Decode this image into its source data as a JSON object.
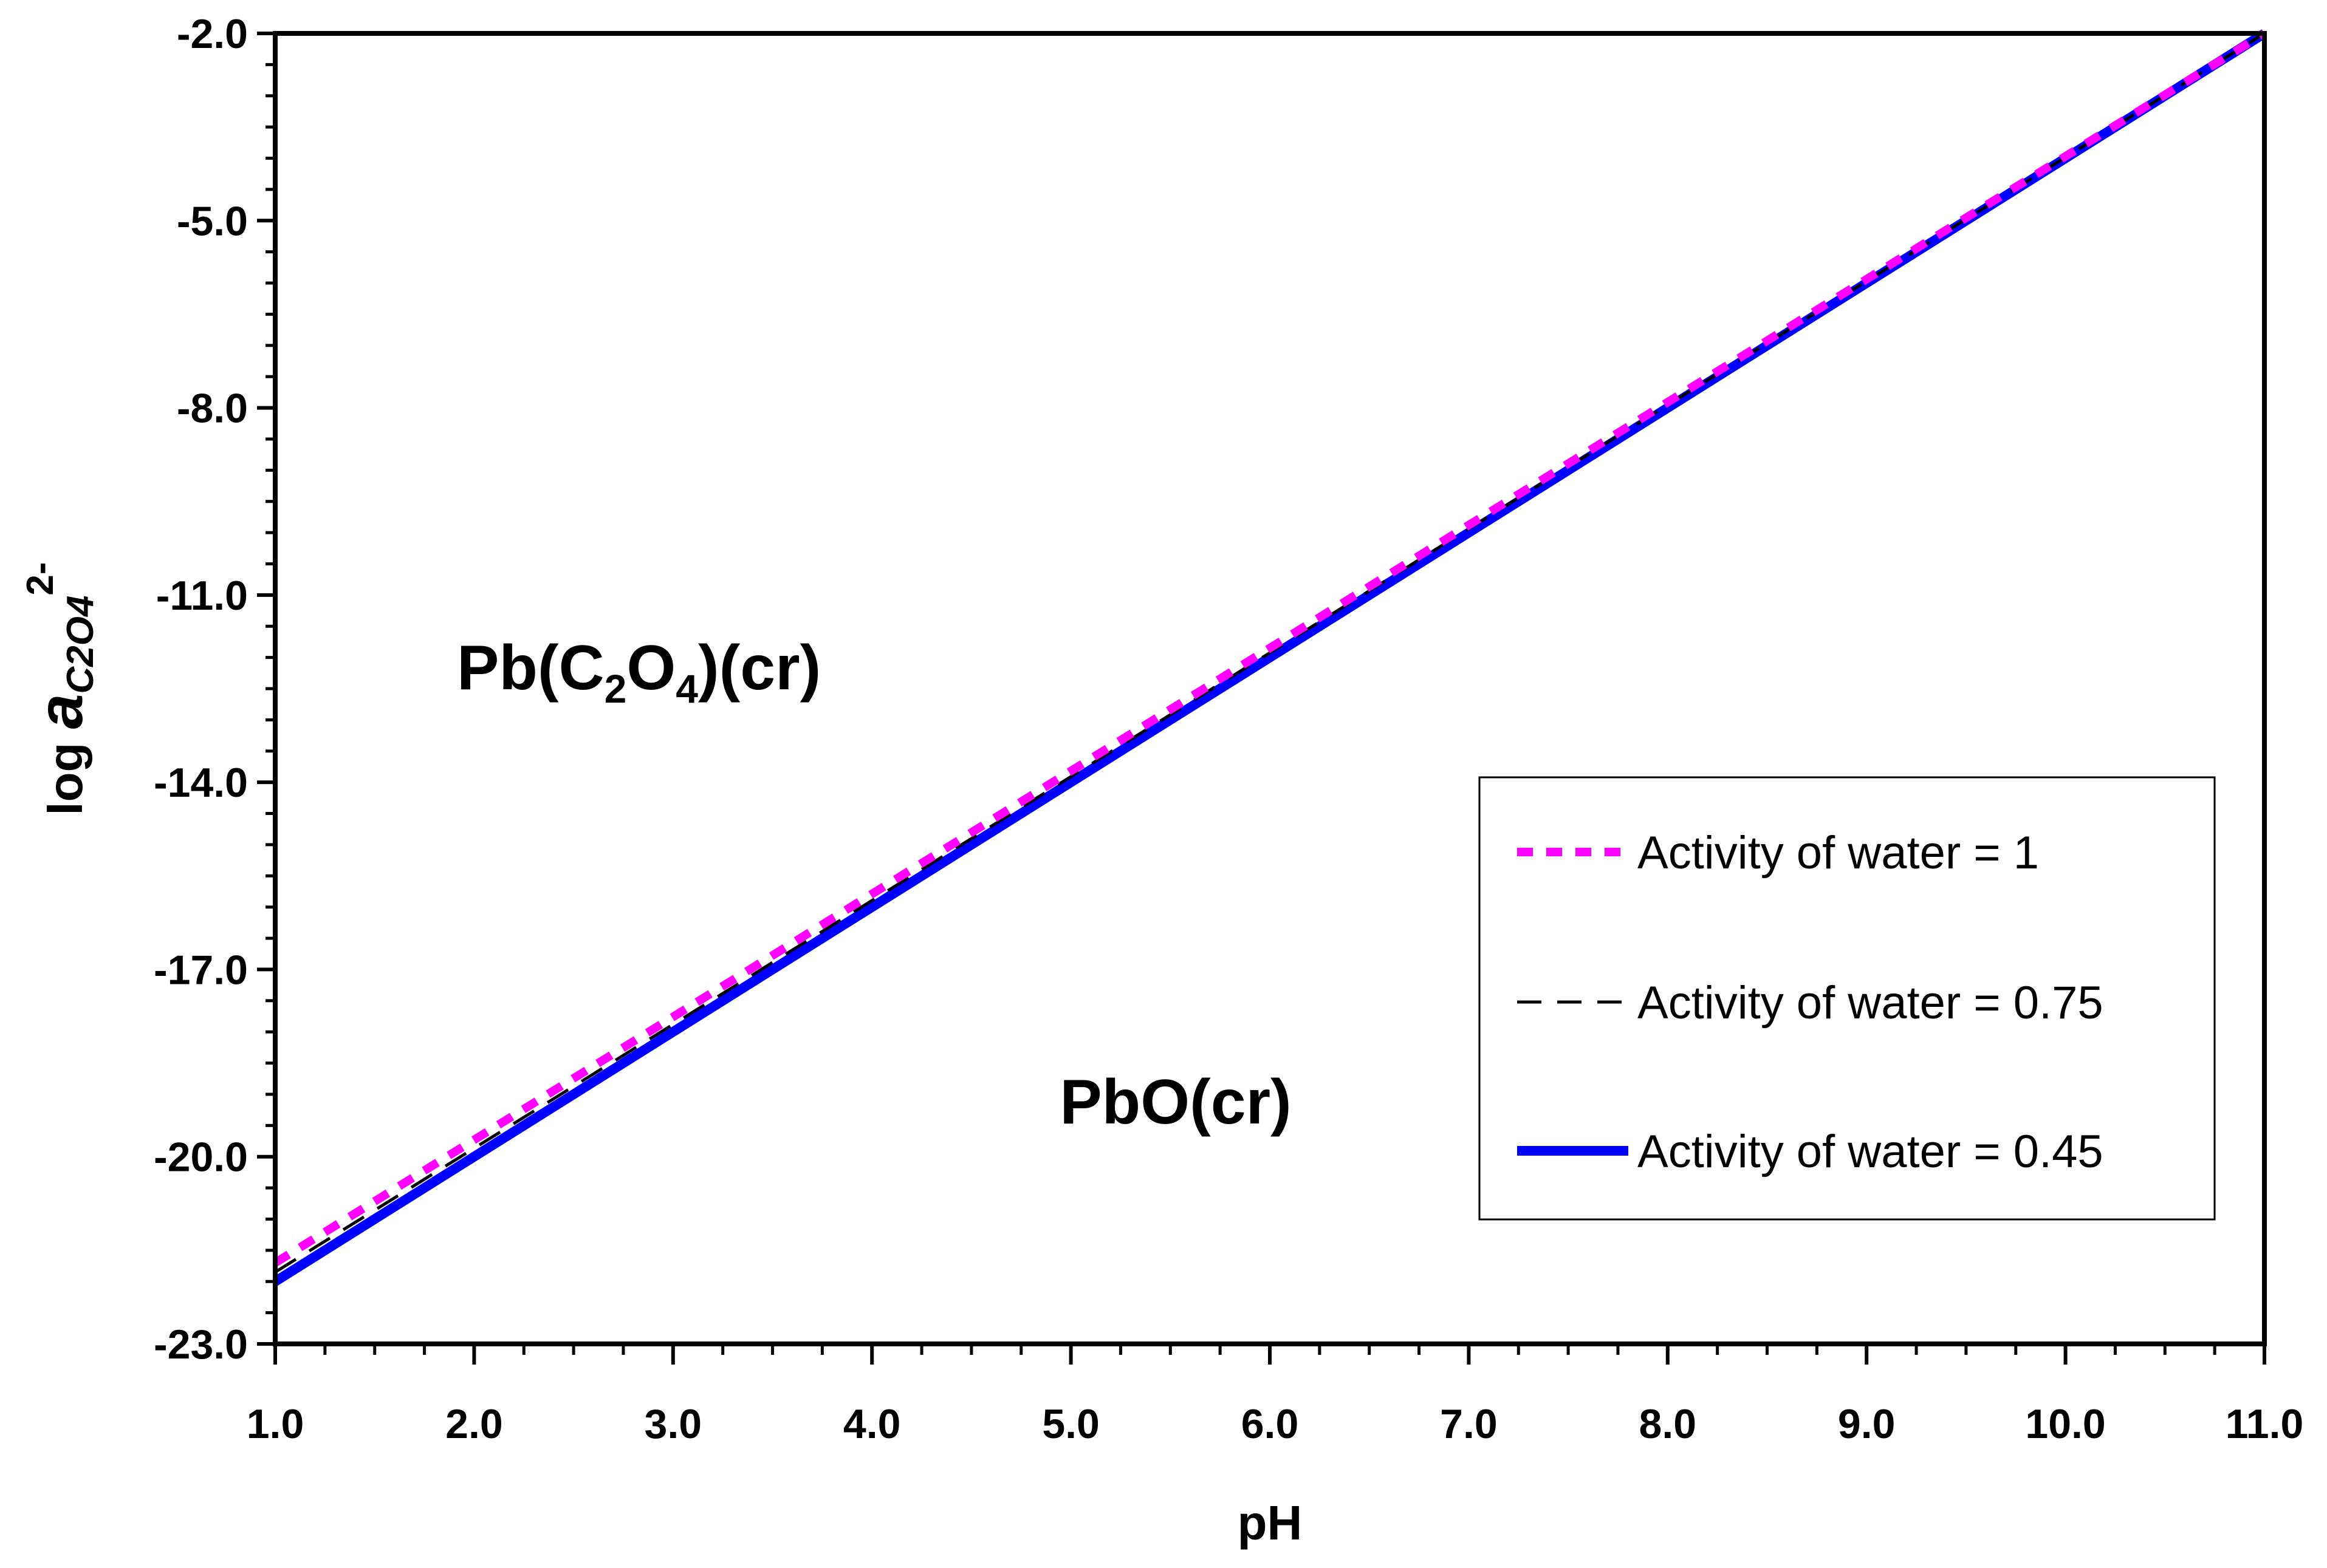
{
  "chart_data": {
    "type": "line",
    "title": "",
    "xlabel": "pH",
    "ylabel": {
      "prefix": "log ",
      "symbol": "a",
      "subscript": "C2O4",
      "superscript": "2-"
    },
    "xlim": [
      1.0,
      11.0
    ],
    "ylim": [
      -23.0,
      -2.0
    ],
    "x_ticks": [
      "1.0",
      "2.0",
      "3.0",
      "4.0",
      "5.0",
      "6.0",
      "7.0",
      "8.0",
      "9.0",
      "10.0",
      "11.0"
    ],
    "y_ticks": [
      "-2.0",
      "-5.0",
      "-8.0",
      "-11.0",
      "-14.0",
      "-17.0",
      "-20.0",
      "-23.0"
    ],
    "grid": false,
    "legend_position": "bottom-right",
    "series": [
      {
        "name": "Activity of water = 1",
        "color": "#ff00ff",
        "style": "dotted",
        "x": [
          1.0,
          11.0
        ],
        "y": [
          -21.7,
          -2.0
        ]
      },
      {
        "name": "Activity of water = 0.75",
        "color": "#000000",
        "style": "dashed",
        "x": [
          1.0,
          11.0
        ],
        "y": [
          -21.85,
          -2.0
        ]
      },
      {
        "name": "Activity of water = 0.45",
        "color": "#0000ff",
        "style": "solid",
        "x": [
          1.0,
          11.0
        ],
        "y": [
          -22.0,
          -2.0
        ]
      }
    ],
    "regions": [
      {
        "name": "upper",
        "base": "Pb(C",
        "sub1": "2",
        "mid": "O",
        "sub2": "4",
        "tail": ")(cr)",
        "at_x": 3.0,
        "at_y": -12.2
      },
      {
        "name": "lower",
        "text": "PbO(cr)",
        "at_x": 5.5,
        "at_y": -19.2
      }
    ]
  }
}
